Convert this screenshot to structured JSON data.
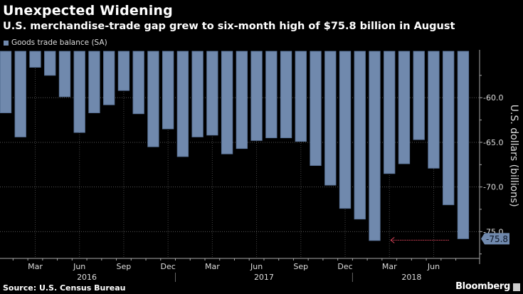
{
  "title": "Unexpected Widening",
  "subtitle": "U.S. merchandise-trade gap grew to six-month high of $75.8 billion in August",
  "source": "Source: U.S. Census Bureau",
  "brand": "Bloomberg",
  "chart_data": {
    "type": "bar",
    "series": [
      {
        "name": "Goods trade balance (SA)",
        "color": "#7089ad",
        "values": [
          -61.7,
          -64.4,
          -56.6,
          -57.5,
          -59.9,
          -63.9,
          -61.7,
          -60.8,
          -59.2,
          -61.8,
          -65.5,
          -63.5,
          -66.6,
          -64.4,
          -64.2,
          -66.3,
          -65.7,
          -64.8,
          -64.5,
          -64.5,
          -64.9,
          -67.6,
          -69.8,
          -72.4,
          -73.6,
          -76.0,
          -68.5,
          -67.4,
          -64.7,
          -67.9,
          -72.0,
          -75.8
        ]
      }
    ],
    "categories": [
      "Jan 2016",
      "Feb 2016",
      "Mar 2016",
      "Apr 2016",
      "May 2016",
      "Jun 2016",
      "Jul 2016",
      "Aug 2016",
      "Sep 2016",
      "Oct 2016",
      "Nov 2016",
      "Dec 2016",
      "Jan 2017",
      "Feb 2017",
      "Mar 2017",
      "Apr 2017",
      "May 2017",
      "Jun 2017",
      "Jul 2017",
      "Aug 2017",
      "Sep 2017",
      "Oct 2017",
      "Nov 2017",
      "Dec 2017",
      "Jan 2018",
      "Feb 2018",
      "Mar 2018",
      "Apr 2018",
      "May 2018",
      "Jun 2018",
      "Jul 2018",
      "Aug 2018"
    ],
    "x_month_ticks": [
      {
        "label": "Mar",
        "index": 2
      },
      {
        "label": "Jun",
        "index": 5
      },
      {
        "label": "Sep",
        "index": 8
      },
      {
        "label": "Dec",
        "index": 11
      },
      {
        "label": "Mar",
        "index": 14
      },
      {
        "label": "Jun",
        "index": 17
      },
      {
        "label": "Sep",
        "index": 20
      },
      {
        "label": "Dec",
        "index": 23
      },
      {
        "label": "Mar",
        "index": 26
      },
      {
        "label": "Jun",
        "index": 29
      }
    ],
    "x_year_ticks": [
      {
        "label": "2016",
        "index": 5.5
      },
      {
        "label": "2017",
        "index": 17.5
      },
      {
        "label": "2018",
        "index": 27.5
      }
    ],
    "ylabel": "U.S. dollars (billions)",
    "yticks": [
      {
        "value": -60,
        "label": "-60.0"
      },
      {
        "value": -65,
        "label": "-65.0"
      },
      {
        "value": -70,
        "label": "-70.0"
      },
      {
        "value": -75,
        "label": "-75.0"
      }
    ],
    "ylim": [
      -78,
      -54.8
    ],
    "y_axis_position": "right",
    "grid": true,
    "legend_position": "top-left",
    "last_value_label": "-75.8",
    "annotation": {
      "type": "arrow",
      "from_index": 31,
      "to_index": 26,
      "value": -75.8,
      "color": "#d9435a"
    }
  }
}
